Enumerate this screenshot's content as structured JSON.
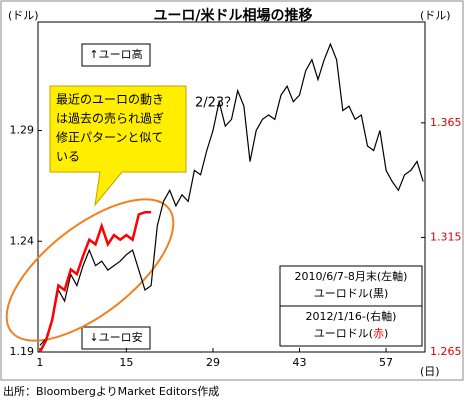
{
  "chart_data": {
    "type": "line",
    "title": "ユーロ/米ドル相場の推移",
    "y_unit": "(ドル)",
    "y2_unit": "(ドル)",
    "x_unit": "(日)",
    "source": "出所：BloombergよりMarket Editors作成",
    "annotations": [
      "↑ユーロ高",
      "↓ユーロ安",
      "2/23？"
    ],
    "callout": [
      "最近のユーロの動き",
      "は過去の売られ過ぎ",
      "修正パターンと似て",
      "いる"
    ],
    "x": [
      1,
      2,
      3,
      4,
      5,
      6,
      7,
      8,
      9,
      10,
      11,
      12,
      13,
      14,
      15,
      16,
      17,
      18,
      19,
      20,
      21,
      22,
      23,
      24,
      25,
      26,
      27,
      28,
      29,
      30,
      31,
      32,
      33,
      34,
      35,
      36,
      37,
      38,
      39,
      40,
      41,
      42,
      43,
      44,
      45,
      46,
      47,
      48,
      49,
      50,
      51,
      52,
      53,
      54,
      55,
      56,
      57,
      58,
      59,
      60,
      61,
      62,
      63
    ],
    "xlim": [
      0.7,
      63.3
    ],
    "xticks": [
      1,
      15,
      29,
      43,
      57
    ],
    "ylim": [
      1.19,
      1.339
    ],
    "yticks": [
      1.19,
      1.24,
      1.29
    ],
    "y2lim": [
      1.265,
      1.409
    ],
    "y2ticks": [
      1.265,
      1.315,
      1.365
    ],
    "series": [
      {
        "name": "2010/6/7-8月末(左軸)",
        "legend": [
          "ユーロドル(",
          "黒",
          ")"
        ],
        "color": "#000000",
        "axis": "y",
        "values": [
          1.193,
          1.196,
          1.204,
          1.218,
          1.213,
          1.225,
          1.22,
          1.229,
          1.236,
          1.229,
          1.231,
          1.227,
          1.229,
          1.231,
          1.234,
          1.236,
          1.227,
          1.218,
          1.22,
          1.247,
          1.258,
          1.263,
          1.256,
          1.261,
          1.258,
          1.272,
          1.27,
          1.281,
          1.29,
          1.303,
          1.292,
          1.295,
          1.308,
          1.301,
          1.276,
          1.29,
          1.295,
          1.297,
          1.295,
          1.306,
          1.31,
          1.303,
          1.306,
          1.317,
          1.322,
          1.313,
          1.322,
          1.329,
          1.322,
          1.299,
          1.301,
          1.295,
          1.297,
          1.283,
          1.281,
          1.29,
          1.272,
          1.267,
          1.263,
          1.27,
          1.272,
          1.276,
          1.267
        ]
      },
      {
        "name": "2012/1/16-(右軸)",
        "legend": [
          "ユーロドル(",
          "赤",
          ")"
        ],
        "color": "#ff0000",
        "axis": "y2",
        "values": [
          1.265,
          1.27,
          1.279,
          1.294,
          1.292,
          1.301,
          1.299,
          1.307,
          1.314,
          1.312,
          1.32,
          1.312,
          1.316,
          1.314,
          1.316,
          1.314,
          1.325,
          1.326,
          1.326,
          null,
          null,
          null,
          null,
          null,
          null,
          null,
          null,
          null,
          null,
          null,
          null,
          null,
          null,
          null,
          null,
          null,
          null,
          null,
          null,
          null,
          null,
          null,
          null,
          null,
          null,
          null,
          null,
          null,
          null,
          null,
          null,
          null,
          null,
          null,
          null,
          null,
          null,
          null,
          null,
          null,
          null,
          null,
          null
        ]
      }
    ]
  }
}
